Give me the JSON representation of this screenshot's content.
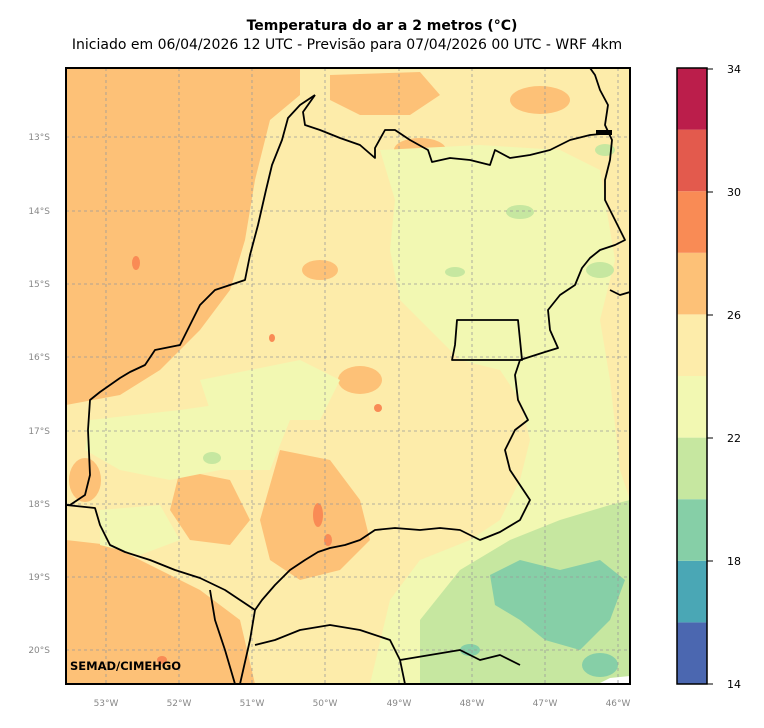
{
  "title": "Temperatura do ar a 2 metros (°C)",
  "subtitle": "Iniciado em 06/04/2026 12 UTC - Previsão para 07/04/2026 00 UTC - WRF 4km",
  "credit": "SEMAD/CIMEHGO",
  "lat_labels": [
    "13°S",
    "14°S",
    "15°S",
    "16°S",
    "17°S",
    "18°S",
    "19°S",
    "20°S"
  ],
  "lon_labels": [
    "53°W",
    "52°W",
    "51°W",
    "50°W",
    "49°W",
    "48°W",
    "47°W",
    "46°W"
  ],
  "colorbar": {
    "tick_labels": [
      "34",
      "30",
      "26",
      "22",
      "18",
      "14"
    ],
    "min": 14,
    "max": 34,
    "bins": [
      {
        "from": 14,
        "to": 16,
        "color": "#4b67b0"
      },
      {
        "from": 16,
        "to": 18,
        "color": "#4aa7b5"
      },
      {
        "from": 18,
        "to": 20,
        "color": "#86cfa7"
      },
      {
        "from": 20,
        "to": 22,
        "color": "#c6e7a0"
      },
      {
        "from": 22,
        "to": 24,
        "color": "#f2f8b2"
      },
      {
        "from": 24,
        "to": 26,
        "color": "#fdecaa"
      },
      {
        "from": 26,
        "to": 28,
        "color": "#fdc177"
      },
      {
        "from": 28,
        "to": 30,
        "color": "#f98b55"
      },
      {
        "from": 30,
        "to": 32,
        "color": "#e35a4d"
      },
      {
        "from": 32,
        "to": 34,
        "color": "#bb1e4b"
      }
    ]
  }
}
